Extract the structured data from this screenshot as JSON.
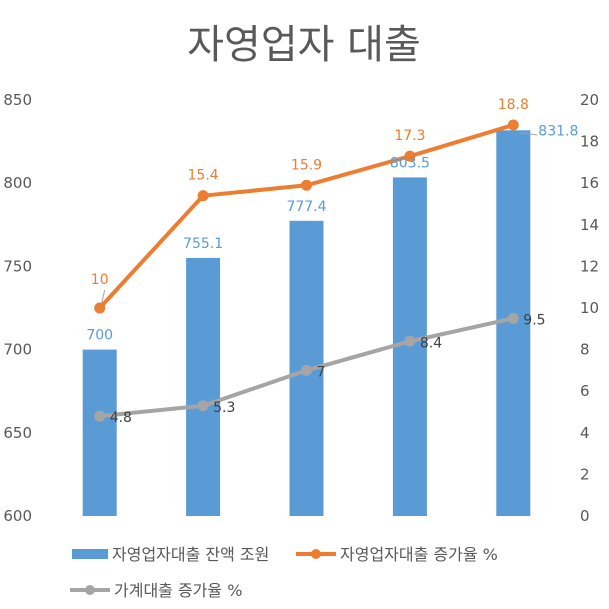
{
  "chart_data": {
    "type": "bar+line",
    "title": "자영업자 대출",
    "categories": [
      "",
      "",
      "",
      "",
      ""
    ],
    "y_left": {
      "range": [
        600,
        850
      ],
      "ticks": [
        "600",
        "650",
        "700",
        "750",
        "800",
        "850"
      ]
    },
    "y_right": {
      "range": [
        0,
        20
      ],
      "ticks": [
        "0",
        "2",
        "4",
        "6",
        "8",
        "10",
        "12",
        "14",
        "16",
        "18",
        "20"
      ]
    },
    "grid": false,
    "legend_position": "bottom",
    "series": [
      {
        "name": "자영업자대출 잔액 조원",
        "type": "bar",
        "axis": "left",
        "color": "#5B9BD5",
        "values": [
          700,
          755.1,
          777.4,
          803.5,
          831.8
        ],
        "labels": [
          "700",
          "755.1",
          "777.4",
          "803.5",
          "831.8"
        ]
      },
      {
        "name": "자영업자대출 증가율 %",
        "type": "line",
        "axis": "right",
        "color": "#ED7D31",
        "values": [
          10,
          15.4,
          15.9,
          17.3,
          18.8
        ],
        "labels": [
          "10",
          "15.4",
          "15.9",
          "17.3",
          "18.8"
        ]
      },
      {
        "name": "가계대출 증가율 %",
        "type": "line",
        "axis": "right",
        "color": "#A5A5A5",
        "values": [
          4.8,
          5.3,
          7,
          8.4,
          9.5
        ],
        "labels": [
          "4.8",
          "5.3",
          "7",
          "8.4",
          "9.5"
        ]
      }
    ]
  }
}
